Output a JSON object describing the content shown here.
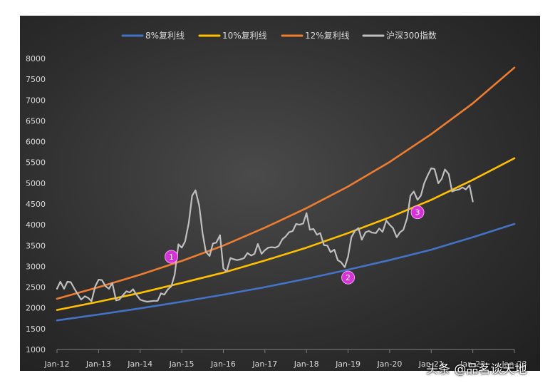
{
  "chart_data": {
    "type": "line",
    "title": "",
    "xlabel": "",
    "ylabel": "",
    "ylim": [
      1000,
      8000
    ],
    "yticks": [
      1000,
      1500,
      2000,
      2500,
      3000,
      3500,
      4000,
      4500,
      5000,
      5500,
      6000,
      6500,
      7000,
      7500,
      8000
    ],
    "xlim": [
      2012.0,
      2023.0
    ],
    "xtick_labels": [
      "Jan-12",
      "Jan-13",
      "Jan-14",
      "Jan-15",
      "Jan-16",
      "Jan-17",
      "Jan-18",
      "Jan-19",
      "Jan-20",
      "Jan-21",
      "Jan-22",
      "Jan-23"
    ],
    "legend_position": "top",
    "grid": false,
    "series": [
      {
        "name": "8%复利线",
        "color": "#4472c4",
        "x": [
          2012,
          2013,
          2014,
          2015,
          2016,
          2017,
          2018,
          2019,
          2020,
          2021,
          2022,
          2023
        ],
        "values": [
          1700,
          1840,
          1990,
          2150,
          2320,
          2500,
          2700,
          2920,
          3150,
          3400,
          3700,
          4020
        ]
      },
      {
        "name": "10%复利线",
        "color": "#ffc000",
        "x": [
          2012,
          2013,
          2014,
          2015,
          2016,
          2017,
          2018,
          2019,
          2020,
          2021,
          2022,
          2023
        ],
        "values": [
          1950,
          2150,
          2360,
          2600,
          2850,
          3140,
          3450,
          3800,
          4180,
          4600,
          5080,
          5600
        ]
      },
      {
        "name": "12%复利线",
        "color": "#ed7d31",
        "x": [
          2012,
          2013,
          2014,
          2015,
          2016,
          2017,
          2018,
          2019,
          2020,
          2021,
          2022,
          2023
        ],
        "values": [
          2220,
          2500,
          2800,
          3130,
          3500,
          3930,
          4400,
          4920,
          5510,
          6180,
          6920,
          7780
        ]
      },
      {
        "name": "沪深300指数",
        "color": "#bfbfbf",
        "x": [
          2012.0,
          2012.08,
          2012.17,
          2012.25,
          2012.33,
          2012.42,
          2012.5,
          2012.58,
          2012.67,
          2012.75,
          2012.83,
          2012.92,
          2013.0,
          2013.08,
          2013.17,
          2013.25,
          2013.33,
          2013.42,
          2013.5,
          2013.58,
          2013.67,
          2013.75,
          2013.83,
          2013.92,
          2014.0,
          2014.08,
          2014.17,
          2014.25,
          2014.33,
          2014.42,
          2014.5,
          2014.58,
          2014.67,
          2014.75,
          2014.83,
          2014.92,
          2015.0,
          2015.08,
          2015.17,
          2015.25,
          2015.33,
          2015.42,
          2015.5,
          2015.58,
          2015.67,
          2015.75,
          2015.83,
          2015.92,
          2016.0,
          2016.08,
          2016.17,
          2016.25,
          2016.33,
          2016.42,
          2016.5,
          2016.58,
          2016.67,
          2016.75,
          2016.83,
          2016.92,
          2017.0,
          2017.08,
          2017.17,
          2017.25,
          2017.33,
          2017.42,
          2017.5,
          2017.58,
          2017.67,
          2017.75,
          2017.83,
          2017.92,
          2018.0,
          2018.08,
          2018.17,
          2018.25,
          2018.33,
          2018.42,
          2018.5,
          2018.58,
          2018.67,
          2018.75,
          2018.83,
          2018.92,
          2019.0,
          2019.08,
          2019.17,
          2019.25,
          2019.33,
          2019.42,
          2019.5,
          2019.58,
          2019.67,
          2019.75,
          2019.83,
          2019.92,
          2020.0,
          2020.08,
          2020.17,
          2020.25,
          2020.33,
          2020.42,
          2020.5,
          2020.58,
          2020.67,
          2020.75,
          2020.83,
          2020.92,
          2021.0,
          2021.08,
          2021.17,
          2021.25,
          2021.33,
          2021.42,
          2021.5,
          2021.58,
          2021.67,
          2021.75,
          2021.83,
          2021.92,
          2022.0
        ],
        "values": [
          2460,
          2630,
          2460,
          2630,
          2620,
          2460,
          2330,
          2200,
          2280,
          2240,
          2160,
          2520,
          2680,
          2670,
          2520,
          2460,
          2600,
          2180,
          2200,
          2300,
          2400,
          2370,
          2450,
          2300,
          2200,
          2170,
          2150,
          2160,
          2170,
          2170,
          2350,
          2320,
          2450,
          2520,
          2800,
          3530,
          3450,
          3600,
          4050,
          4700,
          4830,
          4460,
          3800,
          3350,
          3250,
          3550,
          3570,
          3750,
          2950,
          2880,
          3200,
          3170,
          3150,
          3170,
          3200,
          3320,
          3260,
          3300,
          3540,
          3300,
          3390,
          3450,
          3460,
          3450,
          3490,
          3650,
          3720,
          3820,
          3850,
          4020,
          4000,
          4030,
          4280,
          3880,
          3900,
          3760,
          3800,
          3510,
          3500,
          3340,
          3400,
          3150,
          3100,
          2980,
          3230,
          3700,
          3860,
          3920,
          3640,
          3820,
          3850,
          3810,
          3800,
          3910,
          3830,
          4100,
          4000,
          3920,
          3700,
          3820,
          3880,
          4160,
          4700,
          4800,
          4600,
          4700,
          5000,
          5200,
          5360,
          5340,
          5000,
          5100,
          5330,
          5220,
          4800,
          4830,
          4850,
          4900,
          4850,
          4950,
          4560
        ]
      }
    ],
    "annotations": [
      {
        "label": "1",
        "x": 2014.75,
        "y": 3230
      },
      {
        "label": "2",
        "x": 2019.0,
        "y": 2730
      },
      {
        "label": "3",
        "x": 2020.67,
        "y": 4300
      }
    ]
  },
  "watermark": "头条 @品茗谈天地"
}
